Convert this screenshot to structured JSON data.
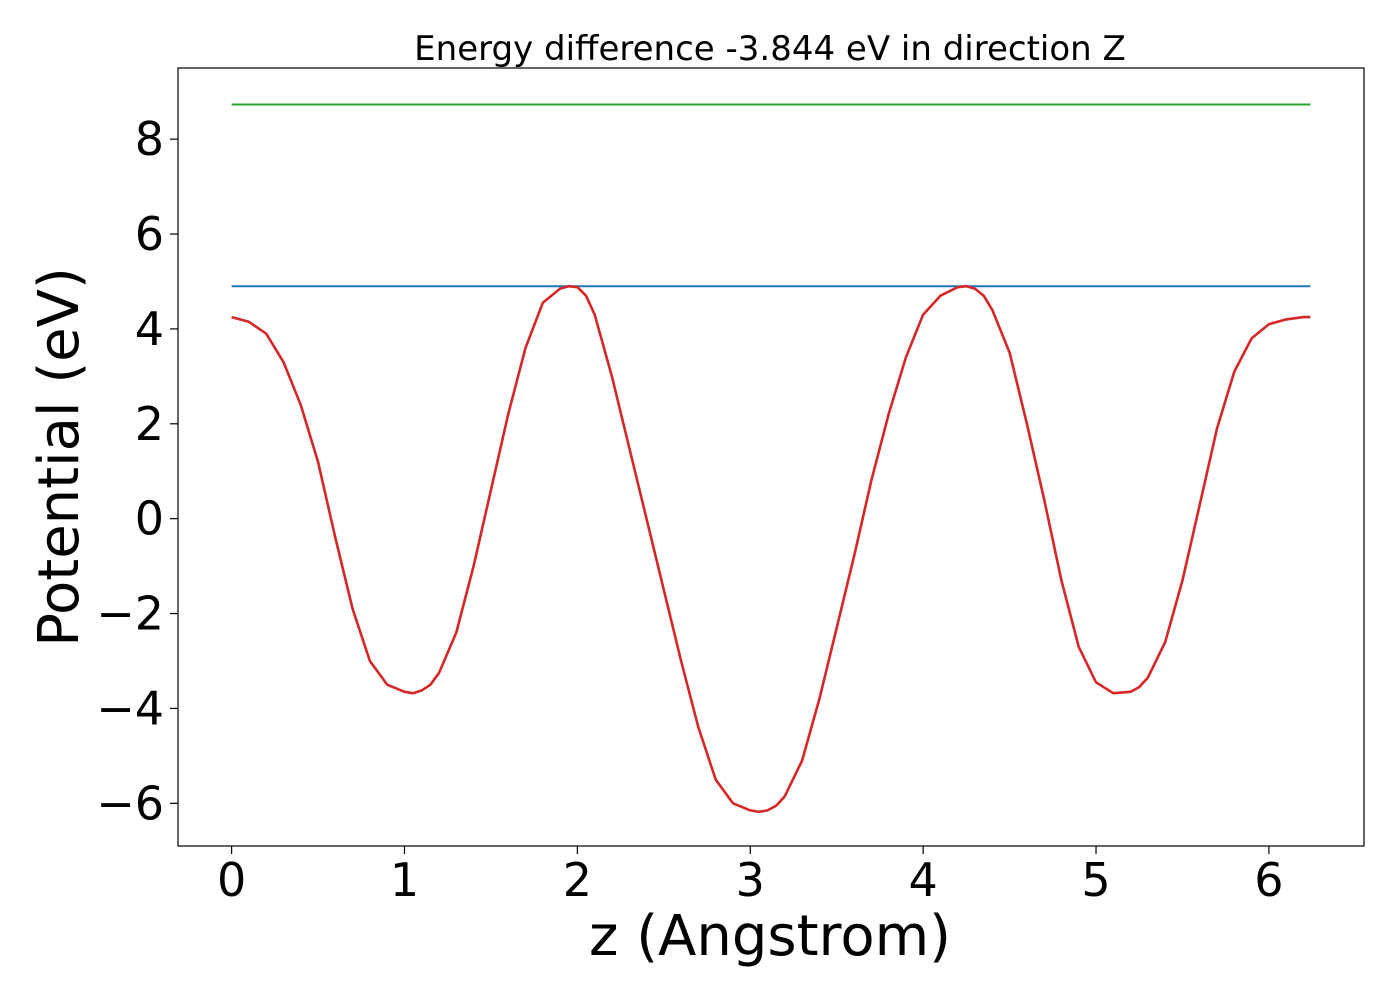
{
  "chart_data": {
    "type": "line",
    "title": "Energy difference -3.844 eV in direction Z",
    "xlabel": "z (Angstrom)",
    "ylabel": "Potential (eV)",
    "xlim": [
      -0.31,
      6.55
    ],
    "ylim": [
      -6.9,
      9.5
    ],
    "xticks": [
      0,
      1,
      2,
      3,
      4,
      5,
      6
    ],
    "yticks": [
      -6,
      -4,
      -2,
      0,
      2,
      4,
      6,
      8
    ],
    "ytick_labels": [
      "−6",
      "−4",
      "−2",
      "0",
      "2",
      "4",
      "6",
      "8"
    ],
    "grid": false,
    "legend": "none",
    "series": [
      {
        "color": "#2ca02c",
        "x": [
          0,
          6.24
        ],
        "y": [
          8.73,
          8.73
        ]
      },
      {
        "color": "#1f77b4",
        "x": [
          0,
          6.24
        ],
        "y": [
          4.9,
          4.9
        ]
      },
      {
        "color": "#d62728",
        "x": [
          0,
          0.1,
          0.2,
          0.3,
          0.4,
          0.5,
          0.6,
          0.7,
          0.8,
          0.9,
          1.0,
          1.05,
          1.1,
          1.15,
          1.2,
          1.3,
          1.4,
          1.5,
          1.6,
          1.7,
          1.8,
          1.9,
          1.95,
          2.0,
          2.05,
          2.1,
          2.2,
          2.3,
          2.4,
          2.5,
          2.6,
          2.7,
          2.8,
          2.9,
          3.0,
          3.05,
          3.1,
          3.15,
          3.2,
          3.3,
          3.4,
          3.5,
          3.6,
          3.7,
          3.8,
          3.9,
          4.0,
          4.1,
          4.2,
          4.25,
          4.3,
          4.35,
          4.4,
          4.5,
          4.6,
          4.7,
          4.8,
          4.9,
          5.0,
          5.1,
          5.2,
          5.25,
          5.3,
          5.4,
          5.5,
          5.6,
          5.7,
          5.8,
          5.9,
          6.0,
          6.1,
          6.2,
          6.24
        ],
        "y": [
          4.25,
          4.15,
          3.9,
          3.3,
          2.4,
          1.2,
          -0.4,
          -1.9,
          -3.0,
          -3.5,
          -3.65,
          -3.68,
          -3.62,
          -3.5,
          -3.25,
          -2.4,
          -1.0,
          0.6,
          2.2,
          3.6,
          4.55,
          4.85,
          4.9,
          4.88,
          4.7,
          4.3,
          3.0,
          1.5,
          0.0,
          -1.5,
          -3.0,
          -4.4,
          -5.5,
          -6.0,
          -6.15,
          -6.18,
          -6.15,
          -6.05,
          -5.85,
          -5.1,
          -3.8,
          -2.3,
          -0.8,
          0.8,
          2.2,
          3.4,
          4.3,
          4.7,
          4.88,
          4.9,
          4.85,
          4.7,
          4.4,
          3.5,
          2.0,
          0.4,
          -1.3,
          -2.7,
          -3.45,
          -3.68,
          -3.65,
          -3.55,
          -3.35,
          -2.6,
          -1.3,
          0.3,
          1.9,
          3.1,
          3.8,
          4.1,
          4.2,
          4.25,
          4.25
        ]
      }
    ]
  }
}
